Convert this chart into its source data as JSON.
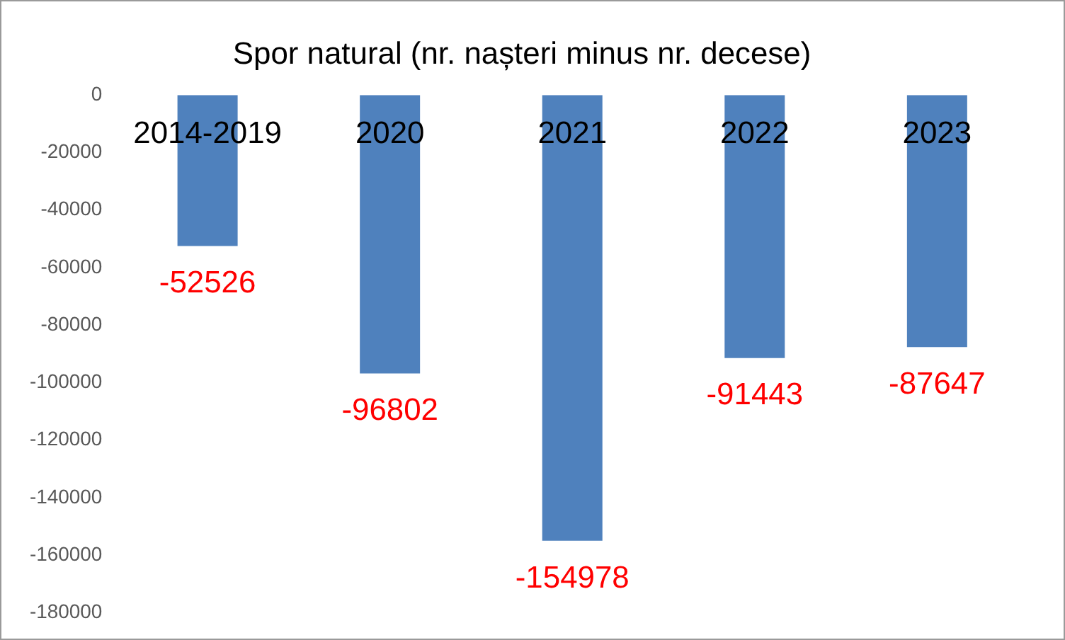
{
  "chart_data": {
    "type": "bar",
    "title": "Spor natural (nr. nașteri minus nr. decese)",
    "categories": [
      "2014-2019",
      "2020",
      "2021",
      "2022",
      "2023"
    ],
    "values": [
      -52526,
      -96802,
      -154978,
      -91443,
      -87647
    ],
    "color": "#4f81bd",
    "ylim": [
      -180000,
      0
    ],
    "yticks": [
      0,
      -20000,
      -40000,
      -60000,
      -80000,
      -100000,
      -120000,
      -140000,
      -160000,
      -180000
    ],
    "grid": false,
    "legend": false,
    "data_labels": true
  }
}
